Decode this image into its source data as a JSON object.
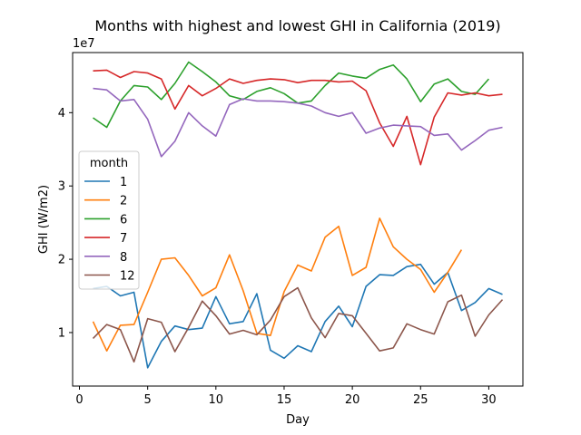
{
  "chart_data": {
    "type": "line",
    "title": "Months with highest and lowest GHI in California (2019)",
    "xlabel": "Day",
    "ylabel": "GHI (W/m2)",
    "y_offset_label": "1e7",
    "y_scale": 10000000,
    "xlim": [
      -0.5,
      32.5
    ],
    "ylim": [
      2700000,
      48200000
    ],
    "x_ticks": [
      0,
      5,
      10,
      15,
      20,
      25,
      30
    ],
    "x_tick_labels": [
      "0",
      "5",
      "10",
      "15",
      "20",
      "25",
      "30"
    ],
    "y_ticks": [
      10000000,
      20000000,
      30000000,
      40000000
    ],
    "y_tick_labels": [
      "1",
      "2",
      "3",
      "4"
    ],
    "grid": false,
    "legend": {
      "title": "month",
      "placement": "center-left"
    },
    "series": [
      {
        "name": "1",
        "color": "#1f77b4",
        "x": [
          1,
          2,
          3,
          4,
          5,
          6,
          7,
          8,
          9,
          10,
          11,
          12,
          13,
          14,
          15,
          16,
          17,
          18,
          19,
          20,
          21,
          22,
          23,
          24,
          25,
          26,
          27,
          28,
          29,
          30,
          31
        ],
        "values": [
          16000000,
          16300000,
          15000000,
          15500000,
          5200000,
          8800000,
          10900000,
          10400000,
          10600000,
          14900000,
          11200000,
          11500000,
          15300000,
          7600000,
          6500000,
          8200000,
          7400000,
          11500000,
          13600000,
          10800000,
          16300000,
          17900000,
          17800000,
          19000000,
          19300000,
          16600000,
          18200000,
          13000000,
          14100000,
          16000000,
          15200000
        ]
      },
      {
        "name": "2",
        "color": "#ff7f0e",
        "x": [
          1,
          2,
          3,
          4,
          5,
          6,
          7,
          8,
          9,
          10,
          11,
          12,
          13,
          14,
          15,
          16,
          17,
          18,
          19,
          20,
          21,
          22,
          23,
          24,
          25,
          26,
          27,
          28
        ],
        "values": [
          11500000,
          7500000,
          11000000,
          11100000,
          15500000,
          20000000,
          20200000,
          17800000,
          15000000,
          16100000,
          20600000,
          15700000,
          9900000,
          9600000,
          15600000,
          19200000,
          18400000,
          23000000,
          24500000,
          17800000,
          18900000,
          25600000,
          21700000,
          20000000,
          18600000,
          15500000,
          18200000,
          21300000
        ]
      },
      {
        "name": "6",
        "color": "#2ca02c",
        "x": [
          1,
          2,
          3,
          4,
          5,
          6,
          7,
          8,
          9,
          10,
          11,
          12,
          13,
          14,
          15,
          16,
          17,
          18,
          19,
          20,
          21,
          22,
          23,
          24,
          25,
          26,
          27,
          28,
          29,
          30
        ],
        "values": [
          39300000,
          38000000,
          41600000,
          43700000,
          43500000,
          41800000,
          44000000,
          46900000,
          45600000,
          44200000,
          42300000,
          41800000,
          42900000,
          43400000,
          42600000,
          41300000,
          41600000,
          43700000,
          45400000,
          45000000,
          44700000,
          45900000,
          46500000,
          44600000,
          41500000,
          43900000,
          44600000,
          42900000,
          42500000,
          44600000
        ]
      },
      {
        "name": "7",
        "color": "#d62728",
        "x": [
          1,
          2,
          3,
          4,
          5,
          6,
          7,
          8,
          9,
          10,
          11,
          12,
          13,
          14,
          15,
          16,
          17,
          18,
          19,
          20,
          21,
          22,
          23,
          24,
          25,
          26,
          27,
          28,
          29,
          30,
          31
        ],
        "values": [
          45700000,
          45800000,
          44800000,
          45600000,
          45400000,
          44600000,
          40500000,
          43700000,
          42300000,
          43300000,
          44600000,
          44000000,
          44400000,
          44600000,
          44500000,
          44100000,
          44400000,
          44400000,
          44200000,
          44300000,
          43000000,
          38600000,
          35400000,
          39500000,
          32900000,
          39400000,
          42700000,
          42400000,
          42700000,
          42300000,
          42500000
        ]
      },
      {
        "name": "8",
        "color": "#9467bd",
        "x": [
          1,
          2,
          3,
          4,
          5,
          6,
          7,
          8,
          9,
          10,
          11,
          12,
          13,
          14,
          15,
          16,
          17,
          18,
          19,
          20,
          21,
          22,
          23,
          24,
          25,
          26,
          27,
          28,
          29,
          30,
          31
        ],
        "values": [
          43300000,
          43100000,
          41600000,
          41800000,
          39100000,
          34000000,
          36100000,
          40000000,
          38200000,
          36800000,
          41100000,
          41900000,
          41600000,
          41600000,
          41500000,
          41300000,
          40900000,
          40000000,
          39500000,
          40000000,
          37200000,
          37900000,
          38300000,
          38200000,
          38100000,
          36900000,
          37100000,
          34900000,
          36200000,
          37600000,
          38000000
        ]
      },
      {
        "name": "12",
        "color": "#8c564b",
        "x": [
          1,
          2,
          3,
          4,
          5,
          6,
          7,
          8,
          9,
          10,
          11,
          12,
          13,
          14,
          15,
          16,
          17,
          18,
          19,
          20,
          21,
          22,
          23,
          24,
          25,
          26,
          27,
          28,
          29,
          30,
          31
        ],
        "values": [
          9200000,
          11100000,
          10400000,
          6000000,
          11900000,
          11400000,
          7400000,
          10700000,
          14300000,
          12300000,
          9800000,
          10300000,
          9700000,
          11700000,
          14900000,
          16100000,
          12000000,
          9300000,
          12600000,
          12300000,
          9900000,
          7500000,
          7900000,
          11200000,
          10400000,
          9800000,
          14200000,
          15100000,
          9500000,
          12400000,
          14500000
        ]
      }
    ]
  }
}
